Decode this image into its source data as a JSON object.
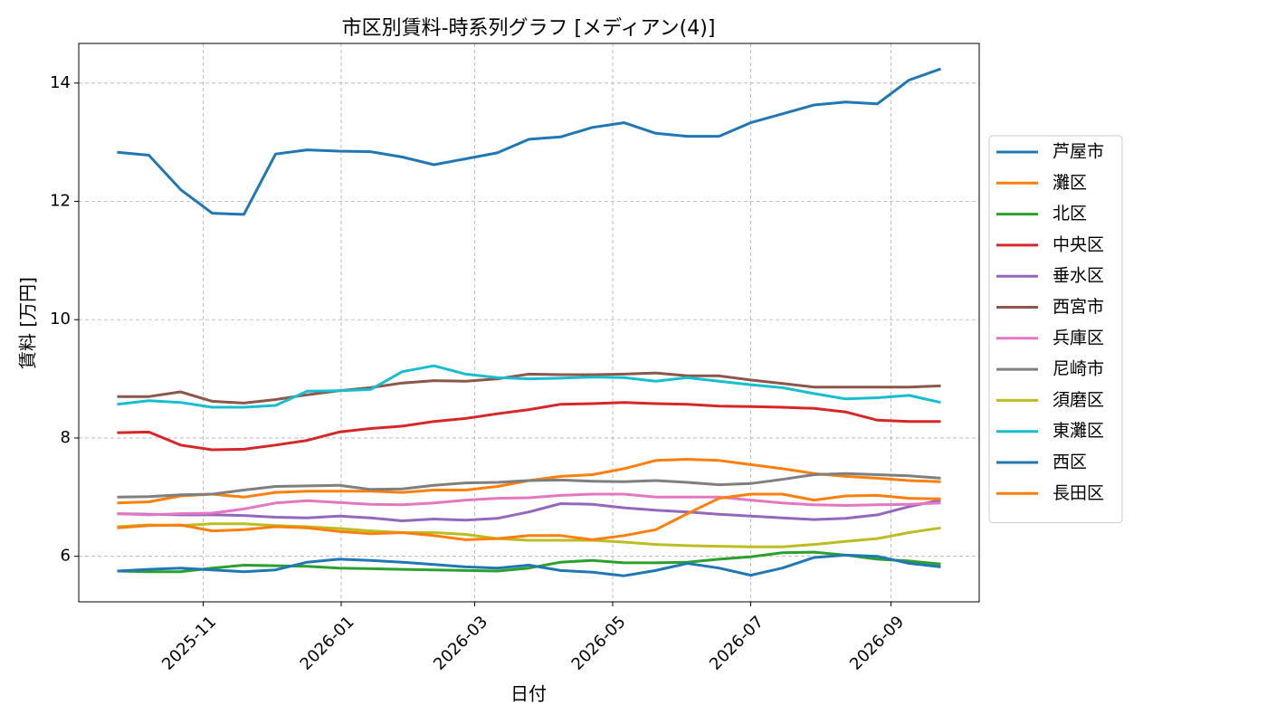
{
  "chart_data": {
    "type": "line",
    "title": "市区別賃料-時系列グラフ [メディアン(4)]",
    "xlabel": "日付",
    "ylabel": "賃料 [万円]",
    "x": [
      "2025-09-24",
      "2025-10-08",
      "2025-10-22",
      "2025-11-05",
      "2025-11-19",
      "2025-12-03",
      "2025-12-17",
      "2025-12-31",
      "2026-01-14",
      "2026-01-28",
      "2026-02-11",
      "2026-02-25",
      "2026-03-11",
      "2026-03-25",
      "2026-04-08",
      "2026-04-22",
      "2026-05-06",
      "2026-05-20",
      "2026-06-03",
      "2026-06-17",
      "2026-07-01",
      "2026-07-15",
      "2026-07-29",
      "2026-08-12",
      "2026-08-26",
      "2026-09-09",
      "2026-09-23"
    ],
    "xlim": [
      "2025-09-07",
      "2026-10-10"
    ],
    "xticks": [
      {
        "value": "2025-11-01",
        "label": "2025-11"
      },
      {
        "value": "2026-01-01",
        "label": "2026-01"
      },
      {
        "value": "2026-03-01",
        "label": "2026-03"
      },
      {
        "value": "2026-05-01",
        "label": "2026-05"
      },
      {
        "value": "2026-07-01",
        "label": "2026-07"
      },
      {
        "value": "2026-09-01",
        "label": "2026-09"
      }
    ],
    "ylim": [
      5.23,
      14.67
    ],
    "yticks": [
      6,
      8,
      10,
      12,
      14
    ],
    "grid": true,
    "legend": "right",
    "series": [
      {
        "name": "芦屋市",
        "color": "#1f77b4",
        "values": [
          12.83,
          12.78,
          12.2,
          11.8,
          11.78,
          12.8,
          12.87,
          12.85,
          12.84,
          12.75,
          12.62,
          12.72,
          12.82,
          13.05,
          13.09,
          13.25,
          13.33,
          13.15,
          13.1,
          13.1,
          13.33,
          13.48,
          13.63,
          13.68,
          13.65,
          14.05,
          14.24
        ]
      },
      {
        "name": "灘区",
        "color": "#ff7f0e",
        "values": [
          6.9,
          6.92,
          7.02,
          7.05,
          7.0,
          7.08,
          7.1,
          7.1,
          7.1,
          7.08,
          7.12,
          7.12,
          7.18,
          7.28,
          7.35,
          7.38,
          7.48,
          7.62,
          7.64,
          7.62,
          7.55,
          7.48,
          7.4,
          7.35,
          7.32,
          7.28,
          7.26
        ]
      },
      {
        "name": "北区",
        "color": "#2ca02c",
        "values": [
          5.75,
          5.74,
          5.74,
          5.8,
          5.85,
          5.84,
          5.83,
          5.8,
          5.79,
          5.78,
          5.77,
          5.76,
          5.75,
          5.8,
          5.9,
          5.93,
          5.89,
          5.89,
          5.9,
          5.95,
          5.99,
          6.06,
          6.07,
          6.02,
          5.95,
          5.92,
          5.87
        ]
      },
      {
        "name": "中央区",
        "color": "#d62728",
        "values": [
          8.09,
          8.1,
          7.88,
          7.8,
          7.81,
          7.88,
          7.96,
          8.1,
          8.16,
          8.2,
          8.28,
          8.33,
          8.41,
          8.48,
          8.57,
          8.58,
          8.6,
          8.58,
          8.57,
          8.54,
          8.53,
          8.52,
          8.5,
          8.44,
          8.3,
          8.28,
          8.28
        ]
      },
      {
        "name": "垂水区",
        "color": "#9467bd",
        "values": [
          6.72,
          6.71,
          6.7,
          6.7,
          6.69,
          6.66,
          6.65,
          6.68,
          6.65,
          6.6,
          6.63,
          6.61,
          6.64,
          6.75,
          6.89,
          6.88,
          6.82,
          6.78,
          6.75,
          6.71,
          6.68,
          6.65,
          6.62,
          6.64,
          6.7,
          6.84,
          6.95
        ]
      },
      {
        "name": "西宮市",
        "color": "#8c564b",
        "values": [
          8.7,
          8.7,
          8.78,
          8.62,
          8.59,
          8.65,
          8.73,
          8.8,
          8.85,
          8.93,
          8.97,
          8.96,
          9.0,
          9.08,
          9.07,
          9.07,
          9.08,
          9.1,
          9.05,
          9.05,
          8.98,
          8.92,
          8.86,
          8.86,
          8.86,
          8.86,
          8.88
        ]
      },
      {
        "name": "兵庫区",
        "color": "#e377c2",
        "values": [
          6.72,
          6.7,
          6.72,
          6.73,
          6.8,
          6.9,
          6.94,
          6.91,
          6.88,
          6.87,
          6.9,
          6.95,
          6.98,
          6.99,
          7.03,
          7.05,
          7.05,
          7.0,
          7.0,
          7.0,
          6.95,
          6.9,
          6.87,
          6.86,
          6.87,
          6.88,
          6.9
        ]
      },
      {
        "name": "尼崎市",
        "color": "#7f7f7f",
        "values": [
          7.0,
          7.01,
          7.04,
          7.05,
          7.12,
          7.18,
          7.19,
          7.2,
          7.13,
          7.14,
          7.2,
          7.24,
          7.25,
          7.28,
          7.29,
          7.27,
          7.26,
          7.28,
          7.25,
          7.21,
          7.23,
          7.3,
          7.38,
          7.4,
          7.38,
          7.36,
          7.32
        ]
      },
      {
        "name": "須磨区",
        "color": "#bcbd22",
        "values": [
          6.5,
          6.53,
          6.52,
          6.55,
          6.55,
          6.52,
          6.5,
          6.47,
          6.43,
          6.4,
          6.4,
          6.37,
          6.3,
          6.27,
          6.27,
          6.27,
          6.24,
          6.2,
          6.18,
          6.17,
          6.16,
          6.16,
          6.2,
          6.25,
          6.3,
          6.4,
          6.48
        ]
      },
      {
        "name": "東灘区",
        "color": "#17becf",
        "values": [
          8.57,
          8.63,
          8.6,
          8.52,
          8.52,
          8.55,
          8.79,
          8.8,
          8.82,
          9.12,
          9.22,
          9.08,
          9.02,
          9.0,
          9.01,
          9.03,
          9.02,
          8.96,
          9.02,
          8.96,
          8.9,
          8.85,
          8.75,
          8.66,
          8.68,
          8.72,
          8.6
        ]
      },
      {
        "name": "西区",
        "color": "#1f77b4",
        "values": [
          5.75,
          5.78,
          5.8,
          5.77,
          5.74,
          5.77,
          5.9,
          5.95,
          5.93,
          5.9,
          5.86,
          5.82,
          5.8,
          5.85,
          5.76,
          5.73,
          5.67,
          5.76,
          5.88,
          5.8,
          5.68,
          5.8,
          5.98,
          6.02,
          6.0,
          5.88,
          5.82
        ]
      },
      {
        "name": "長田区",
        "color": "#ff7f0e",
        "values": [
          6.48,
          6.52,
          6.53,
          6.43,
          6.45,
          6.5,
          6.48,
          6.42,
          6.38,
          6.4,
          6.35,
          6.28,
          6.3,
          6.35,
          6.35,
          6.28,
          6.35,
          6.45,
          6.72,
          6.98,
          7.05,
          7.05,
          6.95,
          7.02,
          7.03,
          6.98,
          6.97
        ]
      }
    ]
  }
}
